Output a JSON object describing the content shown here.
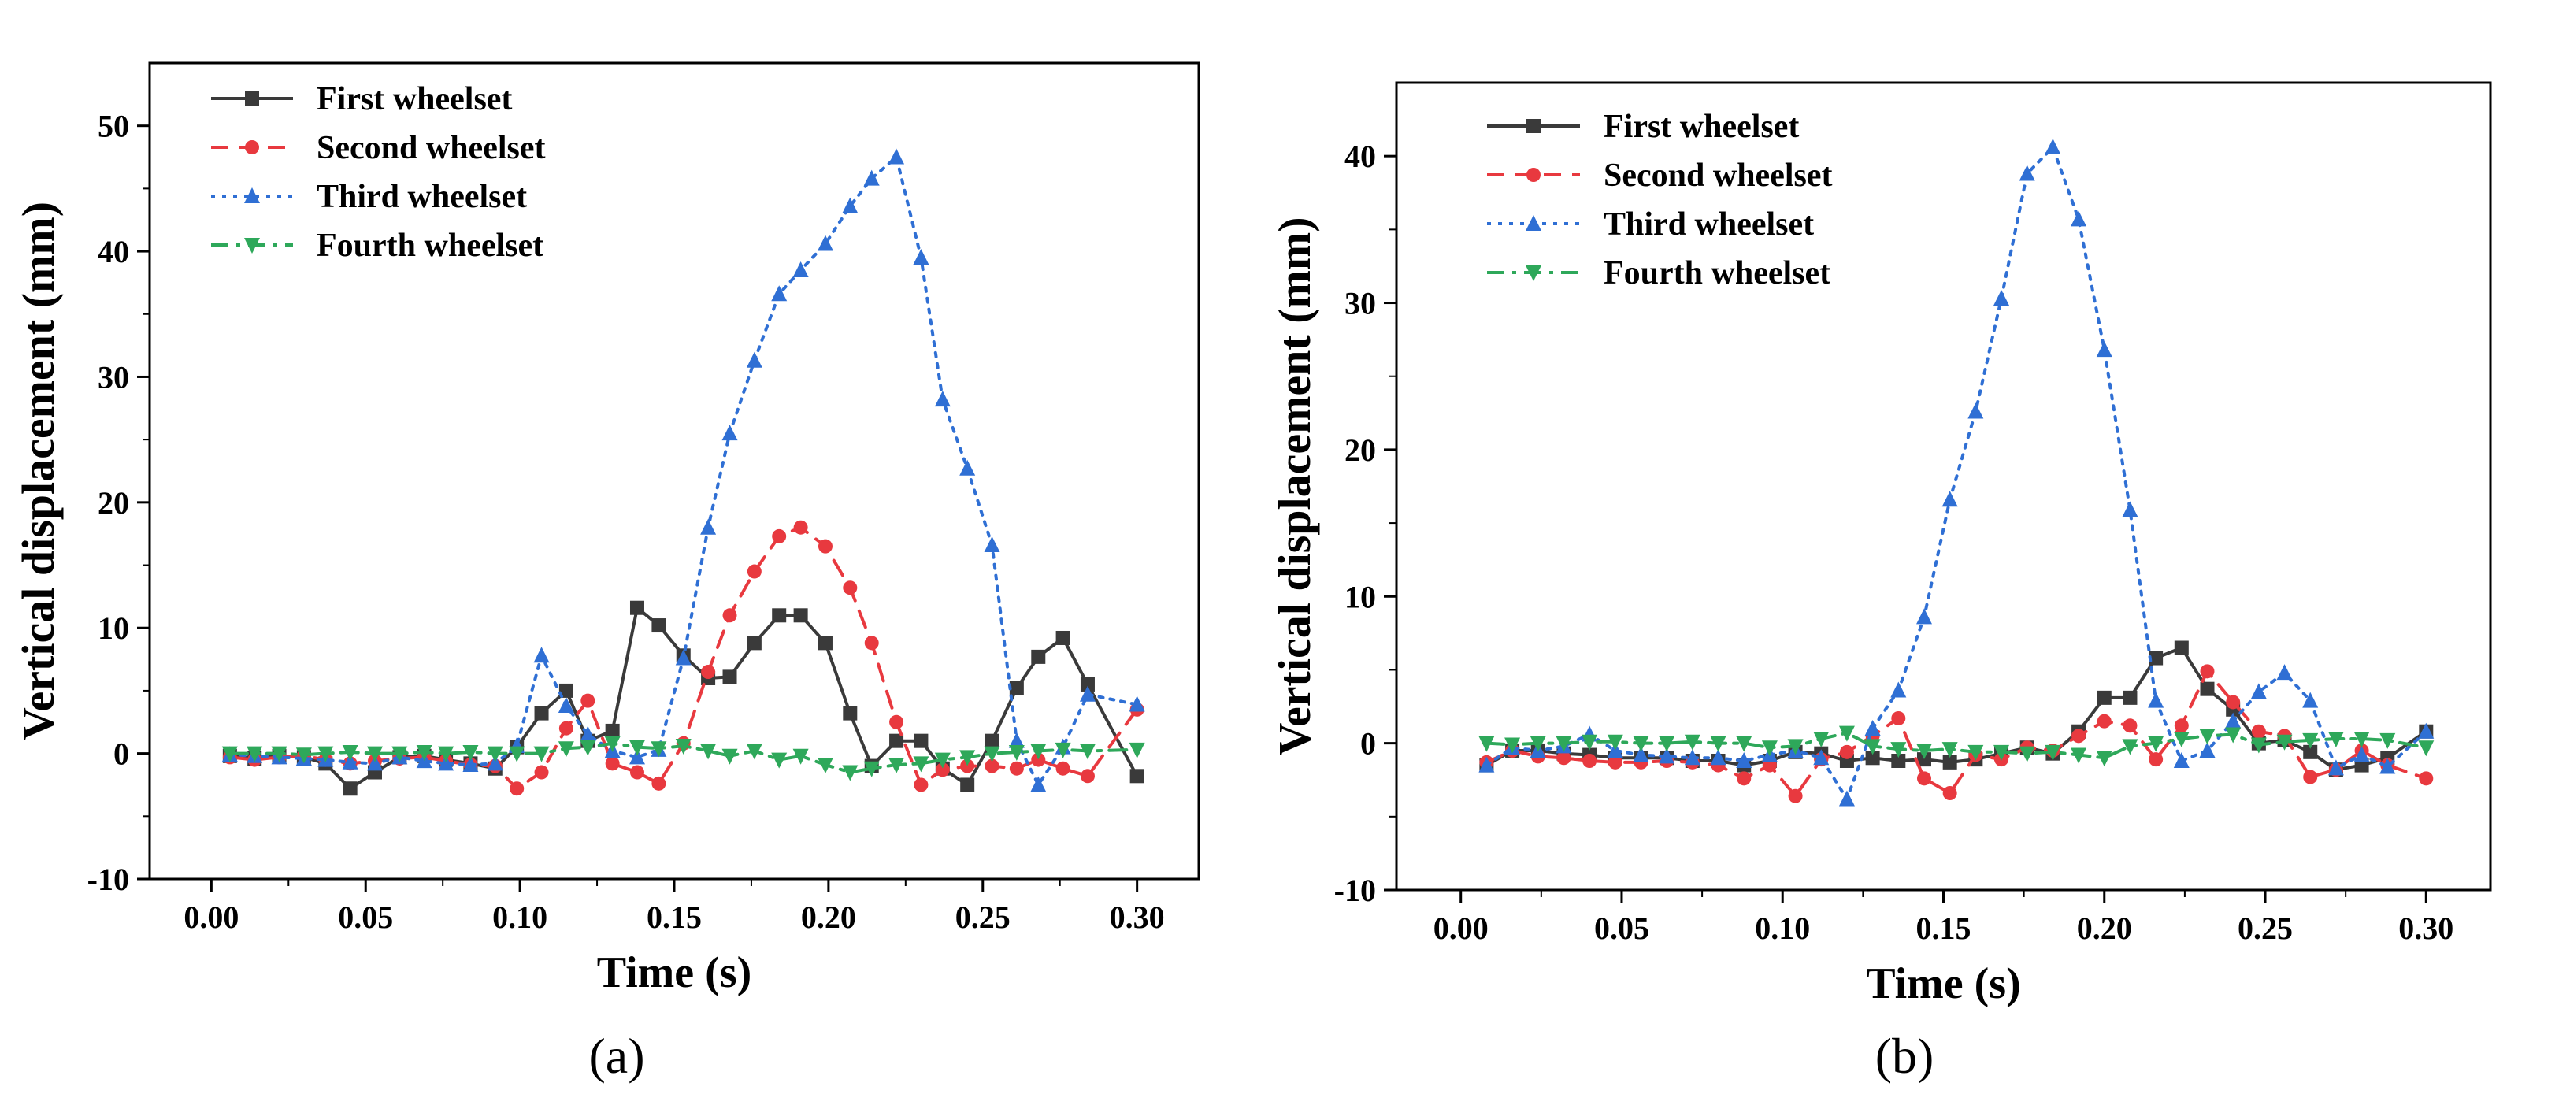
{
  "chart_data": [
    {
      "type": "line",
      "panel_label": "(a)",
      "xlabel": "Time (s)",
      "ylabel": "Vertical displacement (mm)",
      "xlim": [
        -0.02,
        0.32
      ],
      "ylim": [
        -10,
        55
      ],
      "xticks": [
        0.0,
        0.05,
        0.1,
        0.15,
        0.2,
        0.25,
        0.3
      ],
      "xtick_labels": [
        "0.00",
        "0.05",
        "0.10",
        "0.15",
        "0.20",
        "0.25",
        "0.30"
      ],
      "yticks": [
        -10,
        0,
        10,
        20,
        30,
        40,
        50
      ],
      "ytick_labels": [
        "-10",
        "0",
        "10",
        "20",
        "30",
        "40",
        "50"
      ],
      "legend_position": "top-left",
      "series": [
        {
          "name": "First wheelset",
          "color": "#3a3a3a",
          "dash": "solid",
          "marker": "square",
          "x": [
            0.006,
            0.014,
            0.022,
            0.03,
            0.037,
            0.045,
            0.053,
            0.061,
            0.069,
            0.076,
            0.084,
            0.092,
            0.099,
            0.107,
            0.115,
            0.122,
            0.13,
            0.138,
            0.145,
            0.153,
            0.161,
            0.168,
            0.176,
            0.184,
            0.191,
            0.199,
            0.207,
            0.214,
            0.222,
            0.23,
            0.237,
            0.245,
            0.253,
            0.261,
            0.268,
            0.276,
            0.284,
            0.3
          ],
          "y": [
            -0.2,
            -0.4,
            -0.2,
            -0.3,
            -0.8,
            -2.8,
            -1.5,
            -0.3,
            -0.2,
            -0.5,
            -0.8,
            -1.2,
            0.5,
            3.2,
            5.0,
            1.0,
            1.8,
            11.6,
            10.2,
            7.8,
            6.0,
            6.1,
            8.8,
            11.0,
            11.0,
            8.8,
            3.2,
            -1.0,
            1.0,
            1.0,
            -1.2,
            -2.5,
            1.0,
            5.2,
            7.7,
            9.2,
            5.5,
            -1.8
          ]
        },
        {
          "name": "Second wheelset",
          "color": "#e8393f",
          "dash": "dashed",
          "marker": "circle",
          "x": [
            0.006,
            0.014,
            0.022,
            0.03,
            0.037,
            0.045,
            0.053,
            0.061,
            0.069,
            0.076,
            0.084,
            0.092,
            0.099,
            0.107,
            0.115,
            0.122,
            0.13,
            0.138,
            0.145,
            0.153,
            0.161,
            0.168,
            0.176,
            0.184,
            0.191,
            0.199,
            0.207,
            0.214,
            0.222,
            0.23,
            0.237,
            0.245,
            0.253,
            0.261,
            0.268,
            0.276,
            0.284,
            0.3
          ],
          "y": [
            -0.3,
            -0.5,
            -0.3,
            -0.2,
            -0.5,
            -0.8,
            -0.6,
            -0.4,
            -0.3,
            -0.6,
            -0.9,
            -1.0,
            -2.8,
            -1.5,
            2.0,
            4.2,
            -0.8,
            -1.5,
            -2.4,
            0.8,
            6.5,
            11.0,
            14.5,
            17.3,
            18.0,
            16.5,
            13.2,
            8.8,
            2.5,
            -2.5,
            -1.3,
            -1.0,
            -1.0,
            -1.2,
            -0.5,
            -1.2,
            -1.8,
            3.5
          ]
        },
        {
          "name": "Third wheelset",
          "color": "#2f6fd4",
          "dash": "dotted",
          "marker": "triangle-up",
          "x": [
            0.006,
            0.014,
            0.022,
            0.03,
            0.037,
            0.045,
            0.053,
            0.061,
            0.069,
            0.076,
            0.084,
            0.092,
            0.099,
            0.107,
            0.115,
            0.122,
            0.13,
            0.138,
            0.145,
            0.153,
            0.161,
            0.168,
            0.176,
            0.184,
            0.191,
            0.199,
            0.207,
            0.214,
            0.222,
            0.23,
            0.237,
            0.245,
            0.253,
            0.261,
            0.268,
            0.276,
            0.284,
            0.3
          ],
          "y": [
            -0.1,
            -0.2,
            -0.3,
            -0.4,
            -0.5,
            -0.7,
            -0.8,
            -0.3,
            -0.6,
            -0.8,
            -0.9,
            -0.8,
            0.6,
            7.8,
            3.8,
            1.5,
            0.2,
            -0.3,
            0.3,
            7.6,
            18.0,
            25.5,
            31.3,
            36.6,
            38.5,
            40.6,
            43.6,
            45.8,
            47.5,
            39.5,
            28.2,
            22.7,
            16.6,
            1.0,
            -2.5,
            0.5,
            4.7,
            3.9
          ]
        },
        {
          "name": "Fourth wheelset",
          "color": "#2ea85a",
          "dash": "dashdot",
          "marker": "triangle-down",
          "x": [
            0.006,
            0.014,
            0.022,
            0.03,
            0.037,
            0.045,
            0.053,
            0.061,
            0.069,
            0.076,
            0.084,
            0.092,
            0.099,
            0.107,
            0.115,
            0.122,
            0.13,
            0.138,
            0.145,
            0.153,
            0.161,
            0.168,
            0.176,
            0.184,
            0.191,
            0.199,
            0.207,
            0.214,
            0.222,
            0.23,
            0.237,
            0.245,
            0.253,
            0.261,
            0.268,
            0.276,
            0.284,
            0.3
          ],
          "y": [
            0.0,
            0.0,
            0.0,
            -0.1,
            0.0,
            0.1,
            0.0,
            0.0,
            0.1,
            0.0,
            0.1,
            0.0,
            0.0,
            0.0,
            0.4,
            0.5,
            0.8,
            0.5,
            0.4,
            0.6,
            0.2,
            -0.2,
            0.2,
            -0.5,
            -0.2,
            -0.9,
            -1.5,
            -1.2,
            -0.9,
            -0.8,
            -0.5,
            -0.3,
            0.0,
            0.1,
            0.2,
            0.3,
            0.2,
            0.3
          ]
        }
      ]
    },
    {
      "type": "line",
      "panel_label": "(b)",
      "xlabel": "Time (s)",
      "ylabel": "Vertical displacement (mm)",
      "xlim": [
        -0.02,
        0.32
      ],
      "ylim": [
        -10,
        45
      ],
      "xticks": [
        0.0,
        0.05,
        0.1,
        0.15,
        0.2,
        0.25,
        0.3
      ],
      "xtick_labels": [
        "0.00",
        "0.05",
        "0.10",
        "0.15",
        "0.20",
        "0.25",
        "0.30"
      ],
      "yticks": [
        -10,
        0,
        10,
        20,
        30,
        40
      ],
      "ytick_labels": [
        "-10",
        "0",
        "10",
        "20",
        "30",
        "40"
      ],
      "legend_position": "top-left",
      "series": [
        {
          "name": "First wheelset",
          "color": "#3a3a3a",
          "dash": "solid",
          "marker": "square",
          "x": [
            0.008,
            0.016,
            0.024,
            0.032,
            0.04,
            0.048,
            0.056,
            0.064,
            0.072,
            0.08,
            0.088,
            0.096,
            0.104,
            0.112,
            0.12,
            0.128,
            0.136,
            0.144,
            0.152,
            0.16,
            0.168,
            0.176,
            0.184,
            0.192,
            0.2,
            0.208,
            0.216,
            0.224,
            0.232,
            0.24,
            0.248,
            0.256,
            0.264,
            0.272,
            0.28,
            0.288,
            0.3
          ],
          "y": [
            -1.5,
            -0.5,
            -0.5,
            -0.7,
            -0.8,
            -1.0,
            -1.0,
            -1.0,
            -1.2,
            -1.2,
            -1.5,
            -1.2,
            -0.6,
            -0.7,
            -1.2,
            -1.0,
            -1.2,
            -1.1,
            -1.3,
            -1.1,
            -0.7,
            -0.3,
            -0.7,
            0.8,
            3.1,
            3.1,
            5.8,
            6.5,
            3.7,
            2.3,
            0.0,
            0.2,
            -0.6,
            -1.8,
            -1.5,
            -1.0,
            0.8
          ]
        },
        {
          "name": "Second wheelset",
          "color": "#e8393f",
          "dash": "dashed",
          "marker": "circle",
          "x": [
            0.008,
            0.016,
            0.024,
            0.032,
            0.04,
            0.048,
            0.056,
            0.064,
            0.072,
            0.08,
            0.088,
            0.096,
            0.104,
            0.112,
            0.12,
            0.128,
            0.136,
            0.144,
            0.152,
            0.16,
            0.168,
            0.176,
            0.184,
            0.192,
            0.2,
            0.208,
            0.216,
            0.224,
            0.232,
            0.24,
            0.248,
            0.256,
            0.264,
            0.272,
            0.28,
            0.288,
            0.3
          ],
          "y": [
            -1.3,
            -0.5,
            -0.9,
            -1.0,
            -1.2,
            -1.3,
            -1.3,
            -1.2,
            -1.3,
            -1.5,
            -2.4,
            -1.5,
            -3.6,
            -1.1,
            -0.6,
            0.5,
            1.7,
            -2.4,
            -3.4,
            -0.8,
            -1.1,
            -0.3,
            -0.5,
            0.5,
            1.5,
            1.2,
            -1.1,
            1.2,
            4.9,
            2.8,
            0.8,
            0.5,
            -2.3,
            -1.8,
            -0.5,
            -1.5,
            -2.4
          ]
        },
        {
          "name": "Third wheelset",
          "color": "#2f6fd4",
          "dash": "dotted",
          "marker": "triangle-up",
          "x": [
            0.008,
            0.016,
            0.024,
            0.032,
            0.04,
            0.048,
            0.056,
            0.064,
            0.072,
            0.08,
            0.088,
            0.096,
            0.104,
            0.112,
            0.12,
            0.128,
            0.136,
            0.144,
            0.152,
            0.16,
            0.168,
            0.176,
            0.184,
            0.192,
            0.2,
            0.208,
            0.216,
            0.224,
            0.232,
            0.24,
            0.248,
            0.256,
            0.264,
            0.272,
            0.28,
            0.288,
            0.3
          ],
          "y": [
            -1.5,
            -0.3,
            -0.5,
            -0.2,
            0.6,
            -0.5,
            -0.8,
            -0.9,
            -1.0,
            -1.0,
            -1.2,
            -0.8,
            -0.5,
            -1.0,
            -3.8,
            1.0,
            3.6,
            8.6,
            16.6,
            22.6,
            30.3,
            38.8,
            40.6,
            35.7,
            26.8,
            15.9,
            2.9,
            -1.2,
            -0.5,
            1.5,
            3.5,
            4.8,
            2.9,
            -1.7,
            -0.8,
            -1.6,
            0.8
          ]
        },
        {
          "name": "Fourth wheelset",
          "color": "#2ea85a",
          "dash": "dashdot",
          "marker": "triangle-down",
          "x": [
            0.008,
            0.016,
            0.024,
            0.032,
            0.04,
            0.048,
            0.056,
            0.064,
            0.072,
            0.08,
            0.088,
            0.096,
            0.104,
            0.112,
            0.12,
            0.128,
            0.136,
            0.144,
            0.152,
            0.16,
            0.168,
            0.176,
            0.184,
            0.192,
            0.2,
            0.208,
            0.216,
            0.224,
            0.232,
            0.24,
            0.248,
            0.256,
            0.264,
            0.272,
            0.28,
            0.288,
            0.3
          ],
          "y": [
            0.0,
            -0.1,
            0.0,
            0.0,
            0.1,
            0.1,
            0.0,
            0.0,
            0.1,
            0.0,
            0.0,
            -0.3,
            -0.2,
            0.3,
            0.7,
            -0.2,
            -0.4,
            -0.5,
            -0.4,
            -0.6,
            -0.6,
            -0.7,
            -0.6,
            -0.8,
            -1.0,
            -0.2,
            0.0,
            0.3,
            0.5,
            0.6,
            -0.1,
            0.1,
            0.2,
            0.3,
            0.3,
            0.2,
            -0.3
          ]
        }
      ]
    }
  ]
}
